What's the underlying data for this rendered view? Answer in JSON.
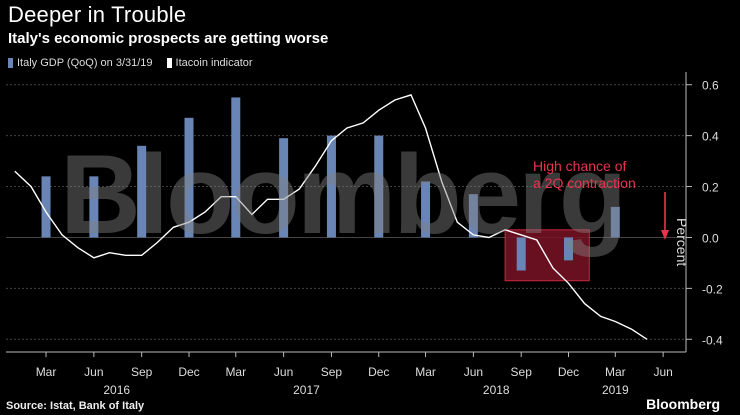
{
  "header": {
    "title": "Deeper in Trouble",
    "subtitle": "Italy's economic prospects are getting worse"
  },
  "footer": {
    "source": "Source: Istat, Bank of Italy",
    "brand": "Bloomberg"
  },
  "watermark": "Bloomberg",
  "annotation": {
    "line1": "High chance of",
    "line2": "a 2Q contraction"
  },
  "colors": {
    "bar": "#6985b6",
    "line": "#ffffff",
    "annotation": "#e8344c",
    "highlight_fill": "#7a1324"
  },
  "chart_data": {
    "type": "bar",
    "title": "Deeper in Trouble",
    "subtitle": "Italy's economic prospects are getting worse",
    "ylabel": "Percent",
    "ylim": [
      -0.45,
      0.65
    ],
    "yticks": [
      0.6,
      0.4,
      0.2,
      0.0,
      -0.2,
      -0.4
    ],
    "ytick_labels": [
      "0.6",
      "0.4",
      "0.2",
      "0.0",
      "-0.2",
      "-0.4"
    ],
    "grid": true,
    "legend_position": "top-left",
    "x_range": [
      "2015-12-15",
      "2019-07-15"
    ],
    "x_ticks": [
      {
        "date": "2016-03-01",
        "label": "Mar"
      },
      {
        "date": "2016-06-01",
        "label": "Jun"
      },
      {
        "date": "2016-09-01",
        "label": "Sep"
      },
      {
        "date": "2016-12-01",
        "label": "Dec"
      },
      {
        "date": "2017-03-01",
        "label": "Mar"
      },
      {
        "date": "2017-06-01",
        "label": "Jun"
      },
      {
        "date": "2017-09-01",
        "label": "Sep"
      },
      {
        "date": "2017-12-01",
        "label": "Dec"
      },
      {
        "date": "2018-03-01",
        "label": "Mar"
      },
      {
        "date": "2018-06-01",
        "label": "Jun"
      },
      {
        "date": "2018-09-01",
        "label": "Sep"
      },
      {
        "date": "2018-12-01",
        "label": "Dec"
      },
      {
        "date": "2019-03-01",
        "label": "Mar"
      },
      {
        "date": "2019-06-01",
        "label": "Jun"
      }
    ],
    "year_labels": [
      {
        "date": "2016-07-15",
        "label": "2016"
      },
      {
        "date": "2017-07-15",
        "label": "2017"
      },
      {
        "date": "2018-07-15",
        "label": "2018"
      },
      {
        "date": "2019-03-01",
        "label": "2019"
      }
    ],
    "series": [
      {
        "name": "Italy GDP (QoQ) on 3/31/19",
        "kind": "bar",
        "color": "#6985b6",
        "points": [
          {
            "date": "2016-03-01",
            "value": 0.24
          },
          {
            "date": "2016-06-01",
            "value": 0.24
          },
          {
            "date": "2016-09-01",
            "value": 0.36
          },
          {
            "date": "2016-12-01",
            "value": 0.47
          },
          {
            "date": "2017-03-01",
            "value": 0.55
          },
          {
            "date": "2017-06-01",
            "value": 0.39
          },
          {
            "date": "2017-09-01",
            "value": 0.4
          },
          {
            "date": "2017-12-01",
            "value": 0.4
          },
          {
            "date": "2018-03-01",
            "value": 0.22
          },
          {
            "date": "2018-06-01",
            "value": 0.17
          },
          {
            "date": "2018-09-01",
            "value": -0.13
          },
          {
            "date": "2018-12-01",
            "value": -0.09
          },
          {
            "date": "2019-03-01",
            "value": 0.12
          }
        ]
      },
      {
        "name": "Itacoin indicator",
        "kind": "line",
        "color": "#ffffff",
        "points": [
          {
            "date": "2016-01-01",
            "value": 0.26
          },
          {
            "date": "2016-02-01",
            "value": 0.2
          },
          {
            "date": "2016-03-01",
            "value": 0.1
          },
          {
            "date": "2016-04-01",
            "value": 0.01
          },
          {
            "date": "2016-05-01",
            "value": -0.04
          },
          {
            "date": "2016-06-01",
            "value": -0.08
          },
          {
            "date": "2016-07-01",
            "value": -0.06
          },
          {
            "date": "2016-08-01",
            "value": -0.07
          },
          {
            "date": "2016-09-01",
            "value": -0.07
          },
          {
            "date": "2016-10-01",
            "value": -0.02
          },
          {
            "date": "2016-11-01",
            "value": 0.04
          },
          {
            "date": "2016-12-01",
            "value": 0.06
          },
          {
            "date": "2017-01-01",
            "value": 0.1
          },
          {
            "date": "2017-02-01",
            "value": 0.16
          },
          {
            "date": "2017-03-01",
            "value": 0.16
          },
          {
            "date": "2017-04-01",
            "value": 0.09
          },
          {
            "date": "2017-05-01",
            "value": 0.15
          },
          {
            "date": "2017-06-01",
            "value": 0.15
          },
          {
            "date": "2017-07-01",
            "value": 0.19
          },
          {
            "date": "2017-08-01",
            "value": 0.28
          },
          {
            "date": "2017-09-01",
            "value": 0.38
          },
          {
            "date": "2017-10-01",
            "value": 0.43
          },
          {
            "date": "2017-11-01",
            "value": 0.45
          },
          {
            "date": "2017-12-01",
            "value": 0.5
          },
          {
            "date": "2018-01-01",
            "value": 0.54
          },
          {
            "date": "2018-02-01",
            "value": 0.56
          },
          {
            "date": "2018-03-01",
            "value": 0.43
          },
          {
            "date": "2018-04-01",
            "value": 0.22
          },
          {
            "date": "2018-05-01",
            "value": 0.06
          },
          {
            "date": "2018-06-01",
            "value": 0.01
          },
          {
            "date": "2018-07-01",
            "value": 0.0
          },
          {
            "date": "2018-08-01",
            "value": 0.03
          },
          {
            "date": "2018-09-01",
            "value": 0.01
          },
          {
            "date": "2018-10-01",
            "value": -0.01
          },
          {
            "date": "2018-11-01",
            "value": -0.12
          },
          {
            "date": "2018-12-01",
            "value": -0.18
          },
          {
            "date": "2019-01-01",
            "value": -0.26
          },
          {
            "date": "2019-02-01",
            "value": -0.31
          },
          {
            "date": "2019-03-01",
            "value": -0.33
          },
          {
            "date": "2019-04-01",
            "value": -0.36
          },
          {
            "date": "2019-05-01",
            "value": -0.4
          }
        ]
      }
    ],
    "annotations": [
      {
        "text": "High chance of",
        "color": "#e8344c"
      },
      {
        "text": "a 2Q contraction",
        "color": "#e8344c"
      }
    ],
    "highlight_range": {
      "x_start": "2018-08-01",
      "x_end": "2019-01-10",
      "y_start": -0.17,
      "y_end": 0.03
    }
  }
}
